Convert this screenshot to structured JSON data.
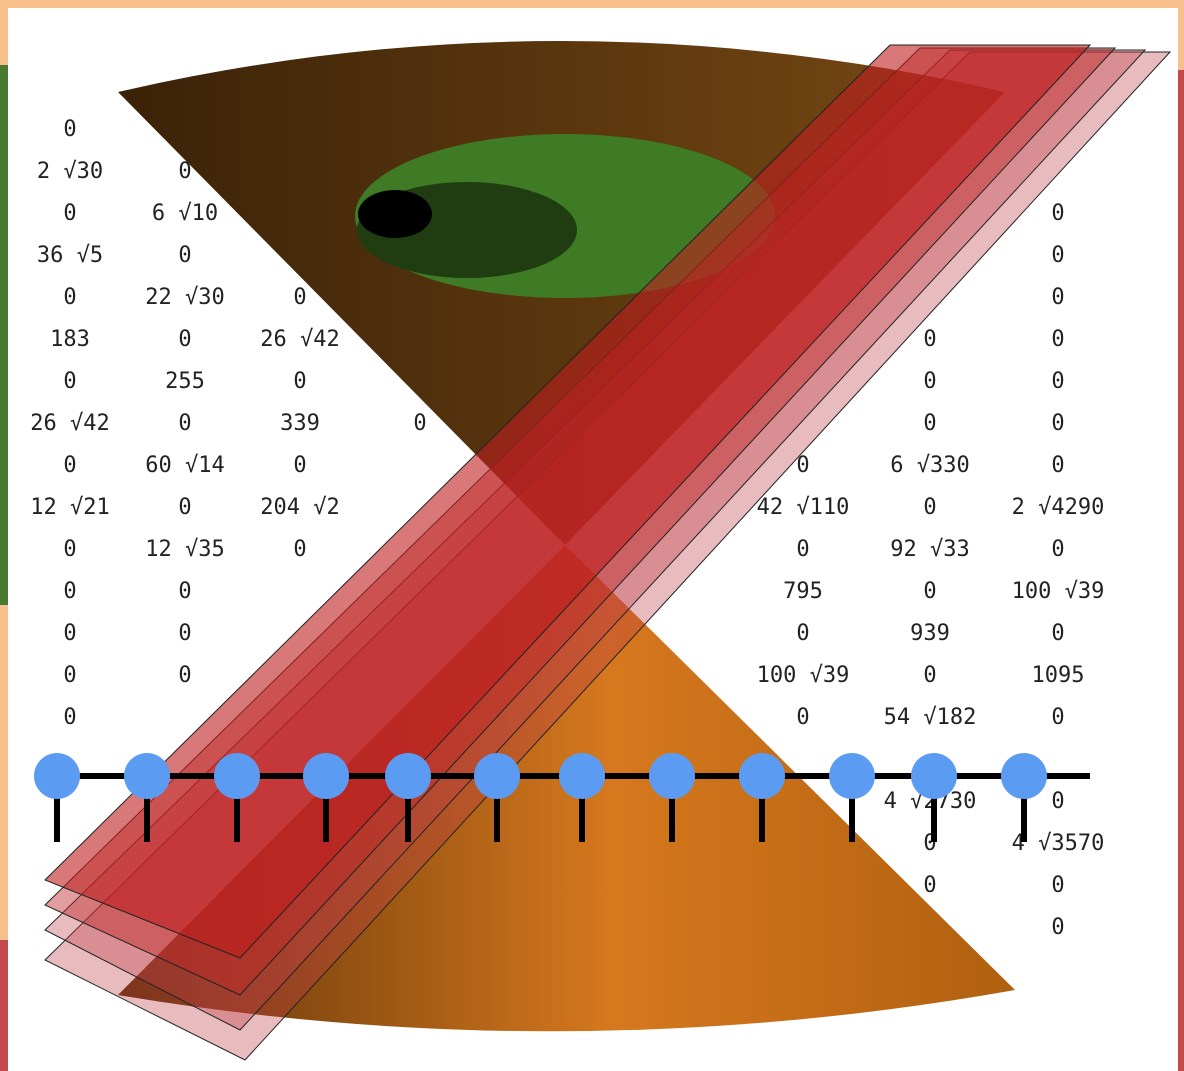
{
  "matrix": {
    "rows": [
      [
        "0",
        null,
        null,
        null,
        null,
        null,
        null,
        null,
        null
      ],
      [
        "2 √30",
        "0",
        null,
        null,
        null,
        null,
        null,
        null,
        null
      ],
      [
        "0",
        "6 √10",
        null,
        null,
        null,
        null,
        null,
        null,
        "0"
      ],
      [
        "36 √5",
        "0",
        null,
        null,
        null,
        null,
        null,
        null,
        "0"
      ],
      [
        "0",
        "22 √30",
        "0",
        null,
        null,
        null,
        null,
        null,
        "0"
      ],
      [
        "183",
        "0",
        "26 √42",
        null,
        null,
        null,
        null,
        "0",
        "0"
      ],
      [
        "0",
        "255",
        "0",
        null,
        null,
        null,
        null,
        "0",
        "0"
      ],
      [
        "26 √42",
        "0",
        "339",
        "0",
        null,
        null,
        null,
        "0",
        "0"
      ],
      [
        "0",
        "60 √14",
        "0",
        null,
        null,
        null,
        "0",
        "6 √330",
        "0"
      ],
      [
        "12 √21",
        "0",
        "204 √2",
        null,
        null,
        null,
        "42 √110",
        "0",
        "2 √4290"
      ],
      [
        "0",
        "12 √35",
        "0",
        null,
        null,
        null,
        "0",
        "92 √33",
        "0"
      ],
      [
        "0",
        "0",
        null,
        null,
        null,
        null,
        "795",
        "0",
        "100 √39"
      ],
      [
        "0",
        "0",
        null,
        null,
        null,
        null,
        "0",
        "939",
        "0"
      ],
      [
        "0",
        "0",
        null,
        null,
        null,
        null,
        "100 √39",
        "0",
        "1095"
      ],
      [
        "0",
        null,
        null,
        null,
        null,
        null,
        "0",
        "54 √182",
        "0"
      ],
      [
        null,
        null,
        null,
        null,
        null,
        null,
        null,
        null,
        null
      ],
      [
        null,
        null,
        null,
        null,
        null,
        null,
        null,
        "4 √2730",
        "0"
      ],
      [
        null,
        null,
        null,
        null,
        null,
        null,
        null,
        "0",
        "4 √3570"
      ],
      [
        null,
        null,
        null,
        null,
        null,
        null,
        null,
        "0",
        "0"
      ],
      [
        null,
        null,
        null,
        null,
        null,
        null,
        null,
        null,
        "0"
      ]
    ]
  }
}
